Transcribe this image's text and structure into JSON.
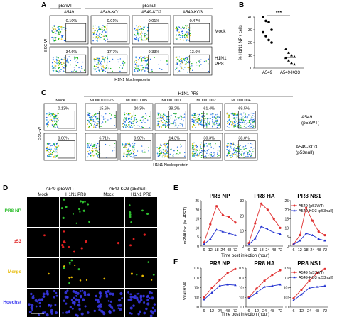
{
  "panel_a": {
    "letter": "A",
    "top_groups": [
      "p53WT",
      "p53null"
    ],
    "columns": [
      "A549",
      "A549-KO1",
      "A549-KO2",
      "A549-KO3"
    ],
    "rows": [
      "Mock",
      "H1N1 PR8"
    ],
    "row_labels": [
      "Mock",
      "H1N1",
      "PR8"
    ],
    "mock_pct": [
      "0.10%",
      "0.01%",
      "0.01%",
      "0.47%"
    ],
    "pr8_pct": [
      "34.6%",
      "17.7%",
      "9.33%",
      "13.6%"
    ],
    "ylabel": "SSC-W",
    "xlabel": "H1N1 Nucleoprotein"
  },
  "panel_b": {
    "letter": "B",
    "ylabel": "% H1N1 NP+ cells",
    "significance": "***",
    "chart_data": {
      "type": "scatter",
      "categories": [
        "A549",
        "A549-KO3"
      ],
      "series": [
        {
          "name": "A549",
          "values": [
            40,
            37,
            36,
            30,
            28,
            25,
            22,
            20
          ]
        },
        {
          "name": "A549-KO3",
          "values": [
            15,
            12,
            10,
            9,
            8,
            6,
            4,
            3
          ]
        }
      ],
      "ylim": [
        0,
        40
      ],
      "yticks": [
        0,
        10,
        20,
        30,
        40
      ],
      "ylabel": "% H1N1 NP+ cells"
    }
  },
  "panel_c": {
    "letter": "C",
    "top_group": "H1N1 PR8",
    "columns": [
      "Mock",
      "MOI=0.00025",
      "MOI=0.0005",
      "MOI=0.001",
      "MOI=0.002",
      "MOI=0.004"
    ],
    "row1_label": [
      "A549",
      "(p53WT)"
    ],
    "row2_label": [
      "A549-KO3",
      "(p53null)"
    ],
    "row1_pct": [
      "0.13%",
      "15.6%",
      "20.3%",
      "39.2%",
      "61.4%",
      "69.5%"
    ],
    "row2_pct": [
      "0.06%",
      "6.71%",
      "9.98%",
      "14.3%",
      "30.3%",
      "38.0%"
    ],
    "ylabel": "SSC-W",
    "xlabel": "H1N1 Nucleoprotein"
  },
  "panel_d": {
    "letter": "D",
    "groups": [
      "A549 (p53WT)",
      "A549-KO3 (p53null)"
    ],
    "columns": [
      "Mock",
      "H1N1 PR8",
      "Mock",
      "H1N1 PR8"
    ],
    "rows": [
      "PR8 NP",
      "p53",
      "Merge",
      "Hoechst"
    ],
    "row_colors": [
      "#2fbf2f",
      "#e02020",
      "#e6b800",
      "#3a3af0"
    ]
  },
  "panel_e": {
    "letter": "E",
    "ylabel": "mRNA fold (to HPRT)",
    "xlabel": "Time post infection (hour)",
    "legend": [
      "A549 (p53WT)",
      "A549-KO3 (p53null)"
    ],
    "chart_data": [
      {
        "type": "line",
        "title": "PR8 NP",
        "x": [
          6,
          12,
          18,
          24,
          48,
          72
        ],
        "series": [
          {
            "name": "A549 (p53WT)",
            "values": [
              2,
              12,
              22,
              17,
              16,
              13
            ]
          },
          {
            "name": "A549-KO3 (p53null)",
            "values": [
              1,
              4,
              9,
              8,
              7,
              6
            ]
          }
        ],
        "ylim": [
          0,
          25
        ],
        "yticks": [
          0,
          5,
          10,
          15,
          20,
          25
        ]
      },
      {
        "type": "line",
        "title": "PR8 HA",
        "x": [
          6,
          12,
          18,
          24,
          48,
          72
        ],
        "series": [
          {
            "name": "A549 (p53WT)",
            "values": [
              2,
              15,
              28,
              24,
              18,
              12
            ]
          },
          {
            "name": "A549-KO3 (p53null)",
            "values": [
              1,
              5,
              13,
              11,
              9,
              8
            ]
          }
        ],
        "ylim": [
          0,
          30
        ],
        "yticks": [
          0,
          10,
          20,
          30
        ]
      },
      {
        "type": "line",
        "title": "PR8 NS1",
        "x": [
          6,
          12,
          18,
          24,
          48,
          72
        ],
        "series": [
          {
            "name": "A549 (p53WT)",
            "values": [
              1,
              6,
              21,
              14,
              8,
              6
            ]
          },
          {
            "name": "A549-KO3 (p53null)",
            "values": [
              1,
              3,
              7,
              6,
              4,
              3
            ]
          }
        ],
        "ylim": [
          0,
          25
        ],
        "yticks": [
          0,
          5,
          10,
          15,
          20,
          25
        ]
      }
    ]
  },
  "panel_f": {
    "letter": "F",
    "ylabel": "Viral RNA",
    "xlabel": "Time post infection (hour)",
    "legend": [
      "A549 (p53WT)",
      "A549-KO3 (p53null)"
    ],
    "chart_data": [
      {
        "type": "line",
        "title": "PR8 NP",
        "x": [
          6,
          12,
          24,
          48,
          72
        ],
        "log": true,
        "series": [
          {
            "name": "A549 (p53WT)",
            "values": [
              100,
              900,
              6000,
              30000,
              80000
            ]
          },
          {
            "name": "A549-KO3 (p53null)",
            "values": [
              60,
              300,
              1500,
              2000,
              1800
            ]
          }
        ],
        "ylim": [
          10,
          100000
        ],
        "yticks": [
          "10",
          "10²",
          "10³",
          "10⁴",
          "10⁵"
        ]
      },
      {
        "type": "line",
        "title": "PR8 HA",
        "x": [
          6,
          12,
          24,
          48,
          72
        ],
        "log": true,
        "series": [
          {
            "name": "A549 (p53WT)",
            "values": [
              100,
              800,
              5000,
              20000,
              60000
            ]
          },
          {
            "name": "A549-KO3 (p53null)",
            "values": [
              80,
              300,
              1200,
              1500,
              2000
            ]
          }
        ],
        "ylim": [
          10,
          100000
        ],
        "yticks": [
          "10",
          "10²",
          "10³",
          "10⁴",
          "10⁵"
        ]
      },
      {
        "type": "line",
        "title": "PR8 NS1",
        "x": [
          6,
          12,
          24,
          48,
          72
        ],
        "log": true,
        "series": [
          {
            "name": "A549 (p53WT)",
            "values": [
              80,
              600,
              5000,
              30000,
              80000
            ]
          },
          {
            "name": "A549-KO3 (p53null)",
            "values": [
              50,
              200,
              900,
              1200,
              1500
            ]
          }
        ],
        "ylim": [
          10,
          100000
        ],
        "yticks": [
          "10",
          "10²",
          "10³",
          "10⁴",
          "10⁵"
        ]
      }
    ]
  },
  "colors": {
    "wt": "#e03030",
    "ko": "#2030d0",
    "gate": "#222222"
  }
}
